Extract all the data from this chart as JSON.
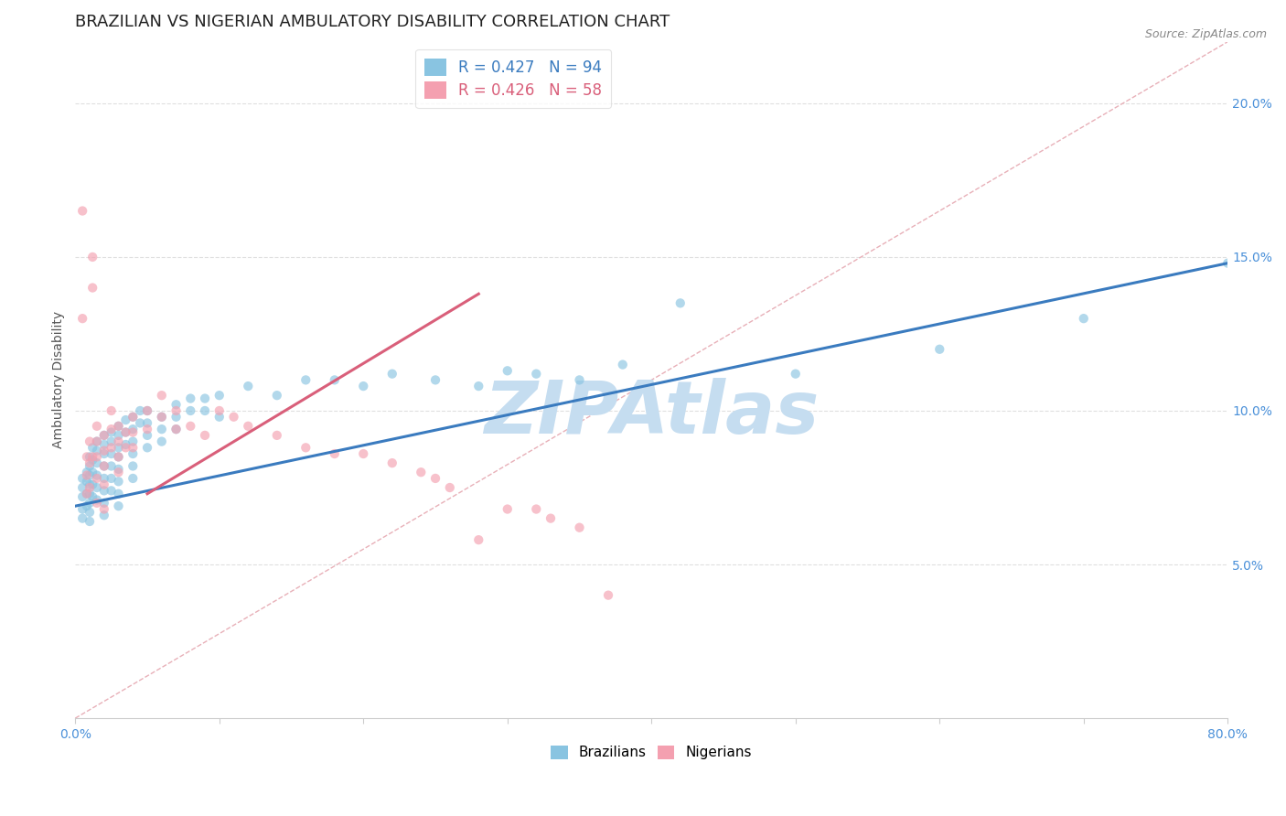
{
  "title": "BRAZILIAN VS NIGERIAN AMBULATORY DISABILITY CORRELATION CHART",
  "source": "Source: ZipAtlas.com",
  "ylabel": "Ambulatory Disability",
  "xlim": [
    0.0,
    0.8
  ],
  "ylim": [
    0.0,
    0.22
  ],
  "xtick_positions": [
    0.0,
    0.1,
    0.2,
    0.3,
    0.4,
    0.5,
    0.6,
    0.7,
    0.8
  ],
  "xticklabels": [
    "0.0%",
    "",
    "",
    "",
    "",
    "",
    "",
    "",
    "80.0%"
  ],
  "ytick_positions": [
    0.05,
    0.1,
    0.15,
    0.2
  ],
  "ytick_labels": [
    "5.0%",
    "10.0%",
    "15.0%",
    "20.0%"
  ],
  "brazilian_R": 0.427,
  "brazilian_N": 94,
  "nigerian_R": 0.426,
  "nigerian_N": 58,
  "blue_color": "#89c4e1",
  "pink_color": "#f4a0b0",
  "blue_line_color": "#3a7bbf",
  "pink_line_color": "#d95f7a",
  "diagonal_color": "#e8b0b8",
  "watermark_color": "#c5ddf0",
  "watermark_text": "ZIPAtlas",
  "title_fontsize": 13,
  "label_fontsize": 10,
  "tick_fontsize": 10,
  "legend_fontsize": 12,
  "scatter_alpha": 0.65,
  "scatter_size": 55,
  "background_color": "#ffffff",
  "grid_color": "#e0e0e0",
  "blue_line_x": [
    0.0,
    0.8
  ],
  "blue_line_y": [
    0.069,
    0.148
  ],
  "pink_line_x": [
    0.05,
    0.28
  ],
  "pink_line_y": [
    0.073,
    0.138
  ],
  "blue_scatter_x": [
    0.005,
    0.005,
    0.005,
    0.005,
    0.005,
    0.008,
    0.008,
    0.008,
    0.008,
    0.01,
    0.01,
    0.01,
    0.01,
    0.01,
    0.01,
    0.01,
    0.01,
    0.012,
    0.012,
    0.012,
    0.012,
    0.012,
    0.015,
    0.015,
    0.015,
    0.015,
    0.015,
    0.015,
    0.02,
    0.02,
    0.02,
    0.02,
    0.02,
    0.02,
    0.02,
    0.02,
    0.025,
    0.025,
    0.025,
    0.025,
    0.025,
    0.025,
    0.03,
    0.03,
    0.03,
    0.03,
    0.03,
    0.03,
    0.03,
    0.03,
    0.035,
    0.035,
    0.035,
    0.04,
    0.04,
    0.04,
    0.04,
    0.04,
    0.04,
    0.045,
    0.045,
    0.05,
    0.05,
    0.05,
    0.05,
    0.06,
    0.06,
    0.06,
    0.07,
    0.07,
    0.07,
    0.08,
    0.08,
    0.09,
    0.09,
    0.1,
    0.1,
    0.12,
    0.14,
    0.16,
    0.18,
    0.2,
    0.22,
    0.25,
    0.28,
    0.3,
    0.32,
    0.35,
    0.38,
    0.42,
    0.5,
    0.6,
    0.7,
    0.8
  ],
  "blue_scatter_y": [
    0.072,
    0.075,
    0.078,
    0.068,
    0.065,
    0.08,
    0.077,
    0.073,
    0.069,
    0.085,
    0.082,
    0.079,
    0.076,
    0.073,
    0.07,
    0.067,
    0.064,
    0.088,
    0.084,
    0.08,
    0.076,
    0.072,
    0.09,
    0.087,
    0.083,
    0.079,
    0.075,
    0.071,
    0.092,
    0.089,
    0.086,
    0.082,
    0.078,
    0.074,
    0.07,
    0.066,
    0.093,
    0.09,
    0.086,
    0.082,
    0.078,
    0.074,
    0.095,
    0.092,
    0.088,
    0.085,
    0.081,
    0.077,
    0.073,
    0.069,
    0.097,
    0.093,
    0.089,
    0.098,
    0.094,
    0.09,
    0.086,
    0.082,
    0.078,
    0.1,
    0.096,
    0.1,
    0.096,
    0.092,
    0.088,
    0.098,
    0.094,
    0.09,
    0.102,
    0.098,
    0.094,
    0.104,
    0.1,
    0.104,
    0.1,
    0.105,
    0.098,
    0.108,
    0.105,
    0.11,
    0.11,
    0.108,
    0.112,
    0.11,
    0.108,
    0.113,
    0.112,
    0.11,
    0.115,
    0.135,
    0.112,
    0.12,
    0.13,
    0.148
  ],
  "pink_scatter_x": [
    0.005,
    0.005,
    0.008,
    0.008,
    0.008,
    0.01,
    0.01,
    0.01,
    0.012,
    0.012,
    0.012,
    0.015,
    0.015,
    0.015,
    0.015,
    0.015,
    0.02,
    0.02,
    0.02,
    0.02,
    0.02,
    0.025,
    0.025,
    0.025,
    0.03,
    0.03,
    0.03,
    0.03,
    0.035,
    0.035,
    0.04,
    0.04,
    0.04,
    0.05,
    0.05,
    0.06,
    0.06,
    0.07,
    0.07,
    0.08,
    0.09,
    0.1,
    0.11,
    0.12,
    0.14,
    0.16,
    0.18,
    0.2,
    0.22,
    0.24,
    0.25,
    0.26,
    0.28,
    0.3,
    0.32,
    0.33,
    0.35,
    0.37
  ],
  "pink_scatter_y": [
    0.165,
    0.13,
    0.085,
    0.079,
    0.073,
    0.09,
    0.083,
    0.075,
    0.15,
    0.14,
    0.085,
    0.095,
    0.09,
    0.085,
    0.078,
    0.07,
    0.092,
    0.087,
    0.082,
    0.076,
    0.068,
    0.1,
    0.094,
    0.088,
    0.095,
    0.09,
    0.085,
    0.08,
    0.093,
    0.088,
    0.098,
    0.093,
    0.088,
    0.1,
    0.094,
    0.105,
    0.098,
    0.1,
    0.094,
    0.095,
    0.092,
    0.1,
    0.098,
    0.095,
    0.092,
    0.088,
    0.086,
    0.086,
    0.083,
    0.08,
    0.078,
    0.075,
    0.058,
    0.068,
    0.068,
    0.065,
    0.062,
    0.04
  ]
}
